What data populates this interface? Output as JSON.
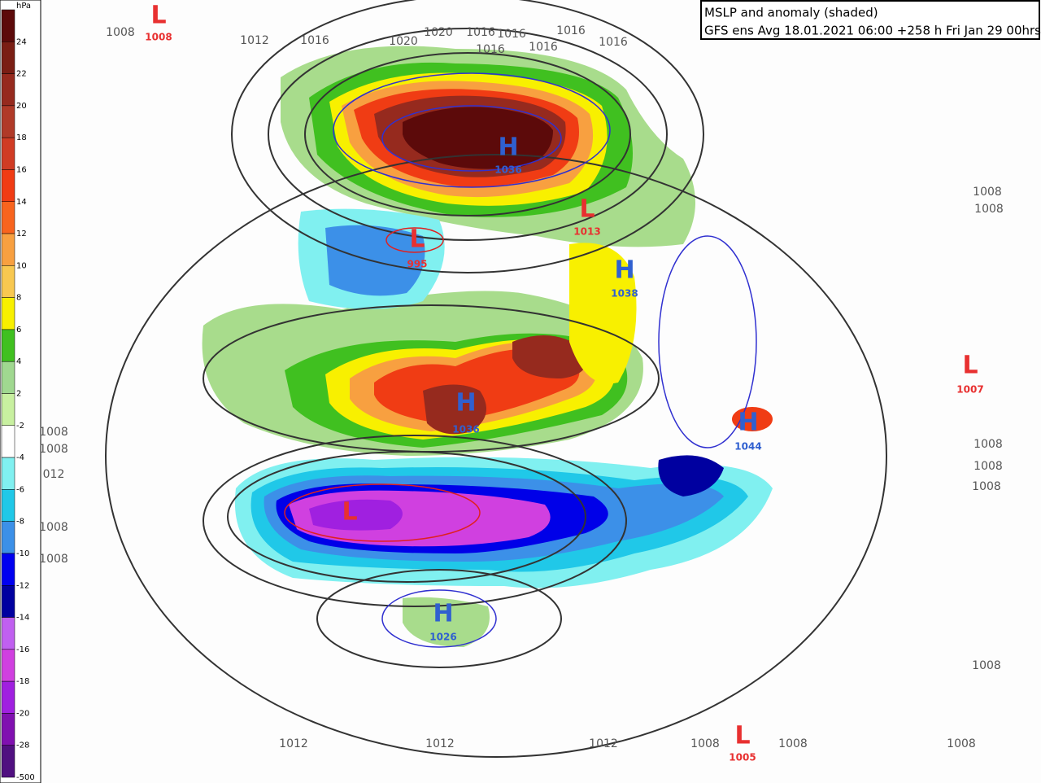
{
  "title": {
    "line1": "MSLP and anomaly (shaded)",
    "line2": "GFS ens Avg 18.01.2021 06:00 +258 h Fri Jan 29 00hrs"
  },
  "colorbar": {
    "unit": "hPa",
    "labels": [
      "24",
      "22",
      "20",
      "18",
      "16",
      "14",
      "12",
      "10",
      "8",
      "6",
      "4",
      "2",
      "-2",
      "-4",
      "-6",
      "-8",
      "-10",
      "-12",
      "-14",
      "-16",
      "-18",
      "-20",
      "-28",
      "-500"
    ]
  },
  "systems": [
    {
      "letter": "L",
      "value": "1008"
    },
    {
      "letter": "H",
      "value": "1036"
    },
    {
      "letter": "L",
      "value": "1013"
    },
    {
      "letter": "L",
      "value": "995"
    },
    {
      "letter": "H",
      "value": "1038"
    },
    {
      "letter": "H",
      "value": "1036"
    },
    {
      "letter": "L",
      "value": "1007"
    },
    {
      "letter": "H",
      "value": "1044"
    },
    {
      "letter": "L"
    },
    {
      "letter": "H",
      "value": "1026"
    },
    {
      "letter": "L",
      "value": "1005"
    }
  ],
  "isobar_labels": [
    "1008",
    "1012",
    "1016",
    "1020",
    "1020",
    "1016",
    "1016",
    "1016",
    "1016",
    "1016",
    "1016",
    "1008",
    "1008",
    "1008",
    "1008",
    "012",
    "1008",
    "1008",
    "1008",
    "1008",
    "1008",
    "1008",
    "1012",
    "1012",
    "1012",
    "1008",
    "1008",
    "1008"
  ]
}
